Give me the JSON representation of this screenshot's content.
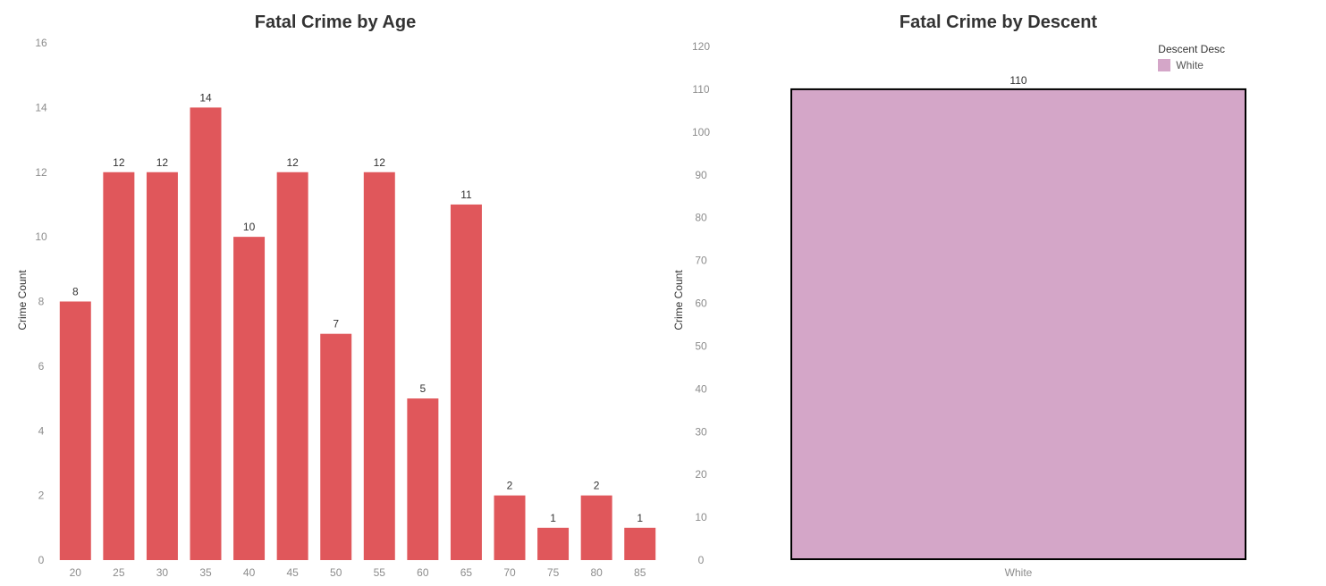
{
  "colors": {
    "age_bar": "#e0575b",
    "descent_bar": "#d4a6c8",
    "descent_border": "#000000"
  },
  "chart_data": [
    {
      "type": "bar",
      "title": "Fatal Crime by Age",
      "xlabel": "",
      "ylabel": "Crime Count",
      "categories": [
        "20",
        "25",
        "30",
        "35",
        "40",
        "45",
        "50",
        "55",
        "60",
        "65",
        "70",
        "75",
        "80",
        "85"
      ],
      "values": [
        8,
        12,
        12,
        14,
        10,
        12,
        7,
        12,
        5,
        11,
        2,
        1,
        2,
        1
      ],
      "ylim": [
        0,
        16
      ],
      "yticks": [
        "0",
        "2",
        "4",
        "6",
        "8",
        "10",
        "12",
        "14",
        "16"
      ],
      "grid": false,
      "data_labels": true
    },
    {
      "type": "bar",
      "title": "Fatal Crime by Descent",
      "xlabel": "",
      "ylabel": "Crime Count",
      "categories": [
        "White"
      ],
      "values": [
        110
      ],
      "ylim": [
        0,
        120
      ],
      "yticks": [
        "0",
        "10",
        "20",
        "30",
        "40",
        "50",
        "60",
        "70",
        "80",
        "90",
        "100",
        "110",
        "120"
      ],
      "grid": false,
      "data_labels": true,
      "legend": {
        "title": "Descent Desc",
        "position": "top-right",
        "items": [
          {
            "label": "White"
          }
        ]
      }
    }
  ]
}
